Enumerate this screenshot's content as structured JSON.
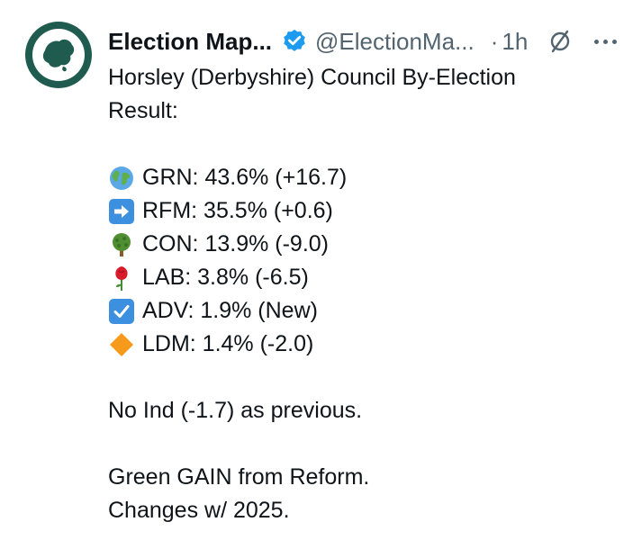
{
  "account": {
    "display_name": "Election Map...",
    "handle": "@ElectionMa...",
    "separator": "·",
    "time": "1h"
  },
  "icons": {
    "avatar": "map-logo-icon",
    "verified": "verified-badge-icon",
    "grok": "grok-icon",
    "more": "more-icon"
  },
  "colors": {
    "brand_green": "#1f5c4f",
    "verified_blue": "#1d9bf0",
    "secondary_text": "#536471"
  },
  "tweet": {
    "title_line1": "Horsley (Derbyshire) Council By-Election",
    "title_line2": "Result:",
    "results": [
      {
        "icon": "globe-icon",
        "text": "GRN: 43.6% (+16.7)"
      },
      {
        "icon": "right-arrow-icon",
        "text": "RFM: 35.5% (+0.6)"
      },
      {
        "icon": "tree-icon",
        "text": "CON: 13.9% (-9.0)"
      },
      {
        "icon": "rose-icon",
        "text": "LAB: 3.8% (-6.5)"
      },
      {
        "icon": "check-box-icon",
        "text": "ADV: 1.9% (New)"
      },
      {
        "icon": "orange-diamond-icon",
        "text": "LDM: 1.4% (-2.0)"
      }
    ],
    "note": "No Ind (-1.7) as previous.",
    "summary_line1": "Green GAIN from Reform.",
    "summary_line2": "Changes w/ 2025."
  }
}
